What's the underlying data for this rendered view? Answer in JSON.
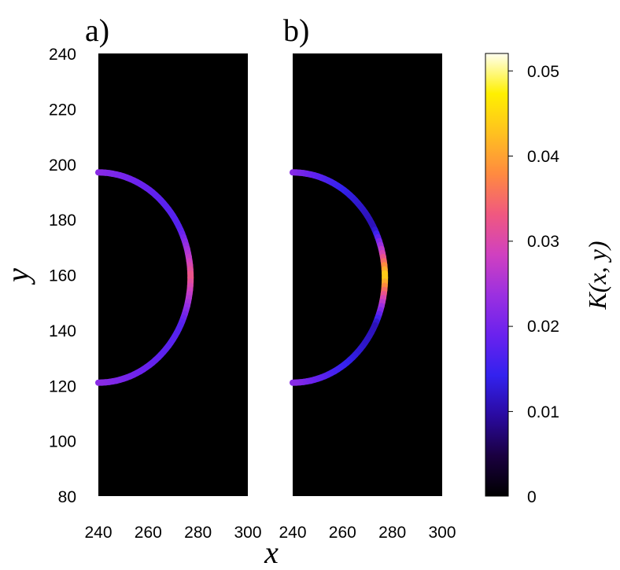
{
  "chart_data": {
    "type": "heatmap",
    "panels": [
      {
        "label": "a)",
        "curve": "arc",
        "intensity_profile": {
          "ends": 0.022,
          "middle": 0.017,
          "tip": 0.033
        }
      },
      {
        "label": "b)",
        "curve": "arc",
        "intensity_profile": {
          "ends": 0.022,
          "middle": 0.011,
          "tip": 0.045
        }
      }
    ],
    "x_ticks": [
      "240",
      "260",
      "280",
      "300"
    ],
    "y_ticks": [
      "240",
      "220",
      "200",
      "180",
      "160",
      "140",
      "120",
      "100",
      "80"
    ],
    "xlim": [
      240,
      300
    ],
    "ylim": [
      80,
      240
    ],
    "xlabel": "x",
    "ylabel": "y",
    "curve_points": {
      "top": [
        240,
        197
      ],
      "tip": [
        277,
        160
      ],
      "bottom": [
        240,
        121
      ]
    },
    "colorbar": {
      "label": "K(x, y)",
      "ticks": [
        "0.05",
        "0.04",
        "0.03",
        "0.02",
        "0.01",
        "0"
      ],
      "range": [
        0,
        0.052
      ],
      "colors": [
        "#000000",
        "#1a0040",
        "#2a0aa0",
        "#3322ee",
        "#6a22ee",
        "#9b30e0",
        "#d040c0",
        "#f05880",
        "#ff8a40",
        "#ffc020",
        "#fff000",
        "#fffff0"
      ]
    },
    "background_color": "#000000"
  }
}
